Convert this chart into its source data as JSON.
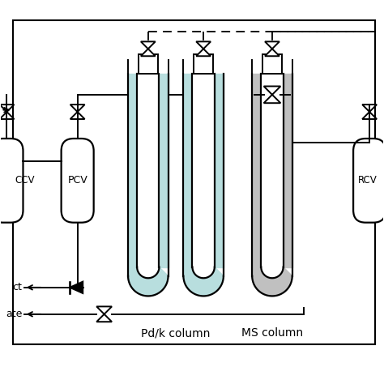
{
  "bg_color": "#ffffff",
  "line_color": "#000000",
  "fill_pdk": "#b8dede",
  "fill_ms": "#c0c0c0",
  "label_pdk": "Pd/k column",
  "label_ms": "MS column",
  "label_pcv": "PCV",
  "label_rcv": "RCV",
  "figsize": [
    4.74,
    4.74
  ],
  "dpi": 100
}
